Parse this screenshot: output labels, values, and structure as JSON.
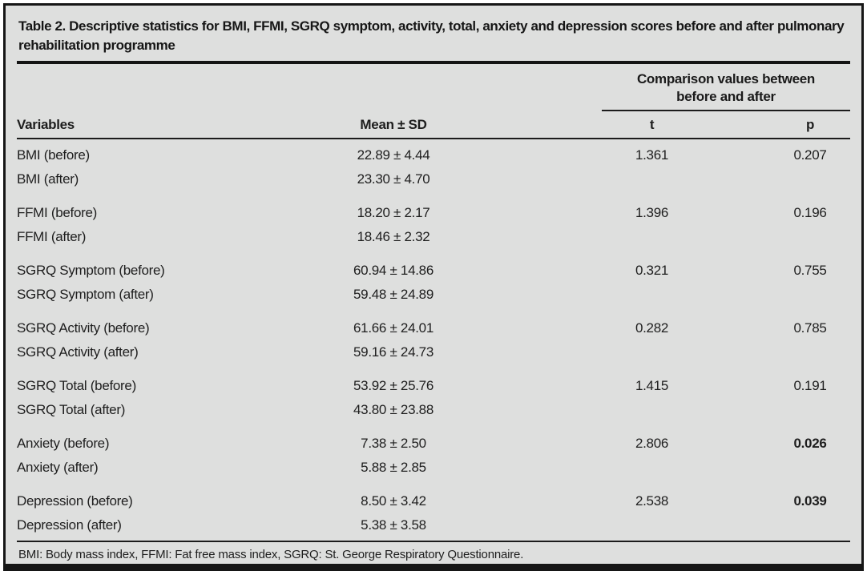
{
  "colors": {
    "page_background": "#ffffff",
    "table_background": "#dedfde",
    "border": "#161616",
    "text": "#1e1e1e"
  },
  "table": {
    "title": "Table 2. Descriptive statistics for BMI, FFMI, SGRQ symptom, activity, total, anxiety and depression scores before and after pulmonary rehabilitation programme",
    "spanner": "Comparison values between before and after",
    "columns": {
      "variables": "Variables",
      "mean_sd": "Mean ± SD",
      "t": "t",
      "p": "p"
    },
    "groups": [
      {
        "rows": [
          {
            "variable": "BMI (before)",
            "mean_sd": "22.89 ± 4.44",
            "t": "1.361",
            "p": "0.207",
            "p_bold": false
          },
          {
            "variable": "BMI (after)",
            "mean_sd": "23.30 ± 4.70",
            "t": "",
            "p": "",
            "p_bold": false
          }
        ]
      },
      {
        "rows": [
          {
            "variable": "FFMI (before)",
            "mean_sd": "18.20 ± 2.17",
            "t": "1.396",
            "p": "0.196",
            "p_bold": false
          },
          {
            "variable": "FFMI (after)",
            "mean_sd": "18.46 ± 2.32",
            "t": "",
            "p": "",
            "p_bold": false
          }
        ]
      },
      {
        "rows": [
          {
            "variable": "SGRQ Symptom (before)",
            "mean_sd": "60.94 ± 14.86",
            "t": "0.321",
            "p": "0.755",
            "p_bold": false
          },
          {
            "variable": "SGRQ Symptom (after)",
            "mean_sd": "59.48 ± 24.89",
            "t": "",
            "p": "",
            "p_bold": false
          }
        ]
      },
      {
        "rows": [
          {
            "variable": "SGRQ Activity (before)",
            "mean_sd": "61.66 ± 24.01",
            "t": "0.282",
            "p": "0.785",
            "p_bold": false
          },
          {
            "variable": "SGRQ Activity (after)",
            "mean_sd": "59.16 ± 24.73",
            "t": "",
            "p": "",
            "p_bold": false
          }
        ]
      },
      {
        "rows": [
          {
            "variable": "SGRQ Total (before)",
            "mean_sd": "53.92 ± 25.76",
            "t": "1.415",
            "p": "0.191",
            "p_bold": false
          },
          {
            "variable": "SGRQ Total (after)",
            "mean_sd": "43.80 ± 23.88",
            "t": "",
            "p": "",
            "p_bold": false
          }
        ]
      },
      {
        "rows": [
          {
            "variable": "Anxiety (before)",
            "mean_sd": "7.38 ± 2.50",
            "t": "2.806",
            "p": "0.026",
            "p_bold": true
          },
          {
            "variable": "Anxiety (after)",
            "mean_sd": "5.88 ± 2.85",
            "t": "",
            "p": "",
            "p_bold": false
          }
        ]
      },
      {
        "rows": [
          {
            "variable": "Depression (before)",
            "mean_sd": "8.50 ± 3.42",
            "t": "2.538",
            "p": "0.039",
            "p_bold": true
          },
          {
            "variable": "Depression (after)",
            "mean_sd": "5.38 ± 3.58",
            "t": "",
            "p": "",
            "p_bold": false
          }
        ]
      }
    ],
    "footnote": "BMI: Body mass index, FFMI: Fat free mass index, SGRQ: St. George Respiratory Questionnaire."
  },
  "chart_data": {
    "type": "table",
    "title": "Table 2. Descriptive statistics for BMI, FFMI, SGRQ symptom, activity, total, anxiety and depression scores before and after pulmonary rehabilitation programme",
    "columns": [
      "Variables",
      "Mean ± SD",
      "t",
      "p"
    ],
    "rows": [
      [
        "BMI (before)",
        "22.89 ± 4.44",
        "1.361",
        "0.207"
      ],
      [
        "BMI (after)",
        "23.30 ± 4.70",
        "",
        ""
      ],
      [
        "FFMI (before)",
        "18.20 ± 2.17",
        "1.396",
        "0.196"
      ],
      [
        "FFMI (after)",
        "18.46 ± 2.32",
        "",
        ""
      ],
      [
        "SGRQ Symptom (before)",
        "60.94 ± 14.86",
        "0.321",
        "0.755"
      ],
      [
        "SGRQ Symptom (after)",
        "59.48 ± 24.89",
        "",
        ""
      ],
      [
        "SGRQ Activity (before)",
        "61.66 ± 24.01",
        "0.282",
        "0.785"
      ],
      [
        "SGRQ Activity (after)",
        "59.16 ± 24.73",
        "",
        ""
      ],
      [
        "SGRQ Total (before)",
        "53.92 ± 25.76",
        "1.415",
        "0.191"
      ],
      [
        "SGRQ Total (after)",
        "43.80 ± 23.88",
        "",
        ""
      ],
      [
        "Anxiety (before)",
        "7.38 ± 2.50",
        "2.806",
        "0.026"
      ],
      [
        "Anxiety (after)",
        "5.88 ± 2.85",
        "",
        ""
      ],
      [
        "Depression (before)",
        "8.50 ± 3.42",
        "2.538",
        "0.039"
      ],
      [
        "Depression (after)",
        "5.38 ± 3.58",
        "",
        ""
      ]
    ]
  }
}
